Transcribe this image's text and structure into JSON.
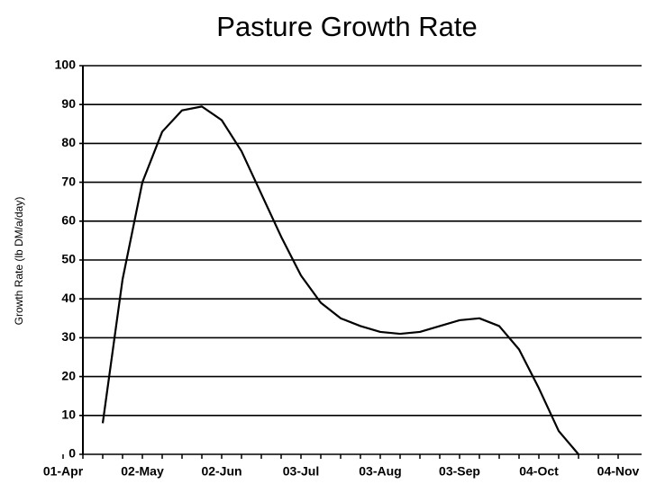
{
  "chart_data": {
    "type": "line",
    "title": "Pasture Growth Rate",
    "y_label": "Growth Rate (lb DM/a/day)",
    "categories": [
      "01-Apr",
      null,
      null,
      null,
      "02-May",
      null,
      null,
      null,
      "02-Jun",
      null,
      null,
      null,
      "03-Jul",
      null,
      null,
      null,
      "03-Aug",
      null,
      null,
      null,
      "03-Sep",
      null,
      null,
      null,
      "04-Oct",
      null,
      null,
      null,
      "04-Nov"
    ],
    "series": [
      {
        "name": "Growth Rate",
        "color": "#000000",
        "values": [
          null,
          null,
          8,
          45,
          70,
          83,
          88.5,
          89.5,
          86,
          78,
          67,
          56,
          46,
          39,
          35,
          33,
          31.5,
          31,
          31.5,
          33,
          34.5,
          35,
          33,
          27,
          17,
          6,
          0,
          null,
          null
        ]
      }
    ],
    "ylim": [
      0,
      100
    ],
    "yticks": [
      0,
      10,
      20,
      30,
      40,
      50,
      60,
      70,
      80,
      90,
      100
    ],
    "grid": true
  }
}
